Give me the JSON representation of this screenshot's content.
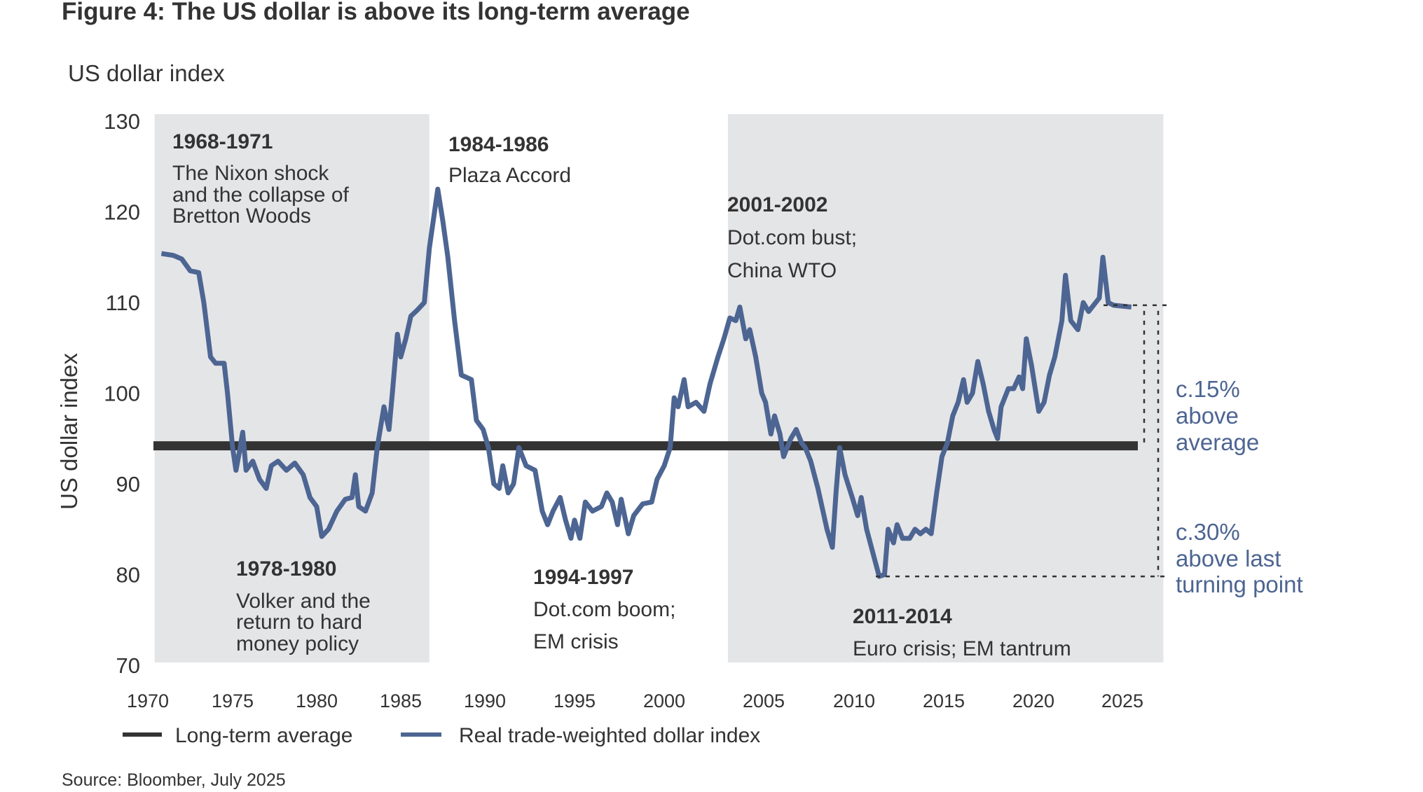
{
  "colors": {
    "series": "#4d6592",
    "average": "#333333",
    "band": "#e4e5e7",
    "annotation": "#4d6592",
    "text": "#333333"
  },
  "chart_data": {
    "type": "line",
    "title": "Figure 4: The US dollar is above its long-term average",
    "subtitle": "US dollar index",
    "ylabel": "US dollar index",
    "xlabel": "",
    "ylim": [
      70,
      130
    ],
    "xlim": [
      1970,
      2025
    ],
    "yticks": [
      "130",
      "120",
      "110",
      "100",
      "90",
      "80",
      "70"
    ],
    "ytick_values": [
      130,
      120,
      110,
      100,
      90,
      80,
      70
    ],
    "xticks": [
      "1970",
      "1975",
      "1980",
      "1985",
      "1990",
      "1995",
      "2000",
      "2005",
      "2010",
      "2015",
      "2020",
      "2025"
    ],
    "xtick_values": [
      1970,
      1975,
      1980,
      1985,
      1990,
      1995,
      2000,
      2005,
      2010,
      2015,
      2020,
      2025
    ],
    "grid": false,
    "legend_position": "bottom-left",
    "legend": [
      {
        "name": "Long-term average",
        "color": "#333333"
      },
      {
        "name": "Real trade-weighted dollar index",
        "color": "#4d6592"
      }
    ],
    "shaded_periods": [
      {
        "start": 1970.4,
        "end": 1986.7
      },
      {
        "start": 2003.2,
        "end": 2027.3
      }
    ],
    "series": [
      {
        "name": "Long-term average",
        "x": [
          1970.3,
          2027.6
        ],
        "values": [
          94.2,
          94.2
        ]
      },
      {
        "name": "Real trade-weighted dollar index",
        "x": [
          1970.8,
          1971.5,
          1972.0,
          1972.5,
          1973.0,
          1973.3,
          1973.7,
          1974.0,
          1974.5,
          1974.7,
          1975.0,
          1975.2,
          1975.4,
          1975.6,
          1975.8,
          1976.2,
          1976.6,
          1977.0,
          1977.3,
          1977.7,
          1978.2,
          1978.7,
          1979.2,
          1979.6,
          1980.0,
          1980.3,
          1980.7,
          1981.2,
          1981.7,
          1982.1,
          1982.3,
          1982.5,
          1982.9,
          1983.3,
          1983.6,
          1984.0,
          1984.3,
          1984.5,
          1984.8,
          1985.0,
          1985.3,
          1985.6,
          1986.0,
          1986.4,
          1986.7,
          1987.2,
          1987.5,
          1987.8,
          1988.2,
          1988.6,
          1989.2,
          1989.5,
          1989.9,
          1990.2,
          1990.5,
          1990.8,
          1991.0,
          1991.3,
          1991.6,
          1991.9,
          1992.3,
          1992.8,
          1993.2,
          1993.5,
          1993.8,
          1994.2,
          1994.5,
          1994.8,
          1995.0,
          1995.3,
          1995.6,
          1996.0,
          1996.5,
          1996.8,
          1997.1,
          1997.4,
          1997.6,
          1998.0,
          1998.3,
          1998.8,
          1999.3,
          1999.6,
          2000.0,
          2000.3,
          2000.5,
          2000.7,
          2001.0,
          2001.2,
          2001.6,
          2002.0,
          2002.3,
          2002.7,
          2003.0,
          2003.3,
          2003.6,
          2003.8,
          2004.1,
          2004.3,
          2004.6,
          2004.9,
          2005.1,
          2005.4,
          2005.6,
          2005.9,
          2006.1,
          2006.5,
          2006.8,
          2007.1,
          2007.3,
          2007.6,
          2008.0,
          2008.5,
          2008.8,
          2009.0,
          2009.2,
          2009.5,
          2009.9,
          2010.2,
          2010.4,
          2010.7,
          2011.1,
          2011.4,
          2011.7,
          2011.9,
          2012.2,
          2012.4,
          2012.7,
          2013.1,
          2013.4,
          2013.7,
          2014.0,
          2014.3,
          2014.6,
          2014.9,
          2015.2,
          2015.5,
          2015.8,
          2016.1,
          2016.3,
          2016.6,
          2016.9,
          2017.2,
          2017.5,
          2017.8,
          2018.0,
          2018.2,
          2018.6,
          2018.9,
          2019.2,
          2019.4,
          2019.6,
          2019.9,
          2020.3,
          2020.6,
          2020.9,
          2021.2,
          2021.6,
          2021.8,
          2022.1,
          2022.5,
          2022.8,
          2023.1,
          2023.5,
          2023.7,
          2023.9,
          2024.2,
          2024.5,
          2025.5
        ],
        "values": [
          115.4,
          115.2,
          114.8,
          113.5,
          113.3,
          110,
          104,
          103.3,
          103.3,
          100,
          94,
          91.5,
          93.5,
          95.7,
          91.5,
          92.5,
          90.5,
          89.5,
          92,
          92.5,
          91.5,
          92.3,
          91,
          88.5,
          87.5,
          84.2,
          85,
          87,
          88.3,
          88.5,
          91,
          87.5,
          87,
          89,
          94,
          98.5,
          96,
          100,
          106.5,
          104,
          106,
          108.5,
          109.2,
          110,
          116,
          122.5,
          119,
          115,
          108,
          102,
          101.5,
          97,
          96,
          94,
          90,
          89.5,
          92,
          89,
          90,
          94,
          92,
          91.5,
          87,
          85.5,
          87,
          88.5,
          86,
          84,
          86,
          84,
          88,
          87,
          87.5,
          89,
          88,
          85.5,
          88.3,
          84.5,
          86.5,
          87.8,
          88,
          90.5,
          92,
          94,
          99.5,
          98.5,
          101.5,
          98.5,
          99,
          98,
          101,
          104,
          106,
          108.3,
          108,
          109.5,
          106,
          107,
          104,
          100,
          99,
          95.5,
          97.5,
          95.5,
          93,
          95,
          96,
          94.5,
          94,
          92.5,
          89.5,
          85,
          83,
          89,
          94,
          91,
          88.5,
          86.5,
          88.5,
          85,
          82,
          79.8,
          80,
          85,
          83.5,
          85.5,
          84,
          84,
          85,
          84.5,
          85,
          84.5,
          89,
          93,
          94.5,
          97.5,
          99,
          101.5,
          99,
          100,
          103.5,
          101,
          98,
          96,
          95,
          98.5,
          100.5,
          100.5,
          101.8,
          100.5,
          106,
          103,
          98,
          99,
          102,
          104,
          108,
          113,
          108,
          107,
          110,
          109,
          110,
          110.5,
          115,
          110,
          109.7,
          109.5
        ]
      }
    ],
    "annotations": [
      {
        "heading": "1968-1971",
        "lines": [
          "The Nixon shock",
          "and the collapse of",
          "Bretton Woods"
        ]
      },
      {
        "heading": "1984-1986",
        "lines": [
          "Plaza Accord"
        ]
      },
      {
        "heading": "2001-2002",
        "lines": [
          "Dot.com bust;",
          "China WTO"
        ]
      },
      {
        "heading": "1978-1980",
        "lines": [
          "Volker and the",
          "return to hard",
          "money policy"
        ]
      },
      {
        "heading": "1994-1997",
        "lines": [
          "Dot.com boom;",
          "EM crisis"
        ]
      },
      {
        "heading": "2011-2014",
        "lines": [
          "Euro crisis; EM tantrum"
        ]
      }
    ],
    "callouts": [
      {
        "lines": [
          "c.15%",
          "above",
          "average"
        ],
        "from_value": 94.2,
        "to_value": 109.7
      },
      {
        "lines": [
          "c.30%",
          "above last",
          "turning point"
        ],
        "from_value": 79.8,
        "to_value": 109.7
      }
    ]
  },
  "source": "Source: Bloomber, July 2025"
}
